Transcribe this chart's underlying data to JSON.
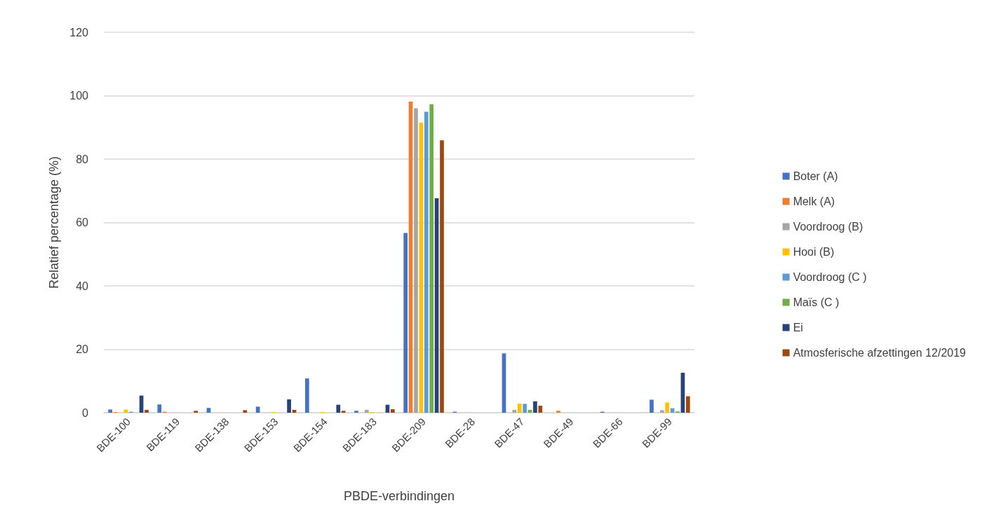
{
  "chart_data": {
    "type": "bar",
    "xlabel": "PBDE-verbindingen",
    "ylabel": "Relatief percentage (%)",
    "categories": [
      "BDE-100",
      "BDE-119",
      "BDE-138",
      "BDE-153",
      "BDE-154",
      "BDE-183",
      "BDE-209",
      "BDE-28",
      "BDE-47",
      "BDE-49",
      "BDE-66",
      "BDE-99"
    ],
    "series": [
      {
        "name": "Boter (A)",
        "color": "#4472c4",
        "values": [
          1.0,
          2.6,
          1.5,
          1.9,
          10.8,
          0.6,
          56.7,
          0.3,
          18.7,
          0,
          0.3,
          4.1
        ]
      },
      {
        "name": "Melk (A)",
        "color": "#ed7d31",
        "values": [
          0.2,
          0.3,
          0,
          0,
          0,
          0,
          98.1,
          0,
          0,
          0.6,
          0,
          0
        ]
      },
      {
        "name": "Voordroog (B)",
        "color": "#a5a5a5",
        "values": [
          0,
          0,
          0,
          0,
          0,
          0.9,
          96.0,
          0,
          0.9,
          0,
          0,
          0.8
        ]
      },
      {
        "name": "Hooi (B)",
        "color": "#ffc000",
        "values": [
          1.0,
          0,
          0,
          0.2,
          0.2,
          0.2,
          91.5,
          0,
          2.9,
          0,
          0,
          3.2
        ]
      },
      {
        "name": "Voordroog (C )",
        "color": "#5b9bd5",
        "values": [
          0.3,
          0,
          0,
          0,
          0,
          0,
          94.9,
          0,
          2.8,
          0,
          0,
          1.4
        ]
      },
      {
        "name": "Maïs (C )",
        "color": "#70ad47",
        "values": [
          0,
          0,
          0,
          0,
          0,
          0,
          97.3,
          0,
          0.9,
          0,
          0,
          0.4
        ]
      },
      {
        "name": "Ei",
        "color": "#264478",
        "values": [
          5.4,
          0,
          0,
          4.2,
          2.5,
          2.5,
          67.6,
          0,
          3.6,
          0,
          0,
          12.6
        ]
      },
      {
        "name": "Atmosferische afzettingen 12/2019",
        "color": "#9e480e",
        "values": [
          0.9,
          0.6,
          0.8,
          0.9,
          0.6,
          1.1,
          85.9,
          0,
          2.2,
          0,
          0,
          5.2
        ]
      }
    ],
    "ylim": [
      0,
      120
    ],
    "yticks": [
      0,
      20,
      40,
      60,
      80,
      100,
      120
    ],
    "grid": "y",
    "legend": "right"
  }
}
